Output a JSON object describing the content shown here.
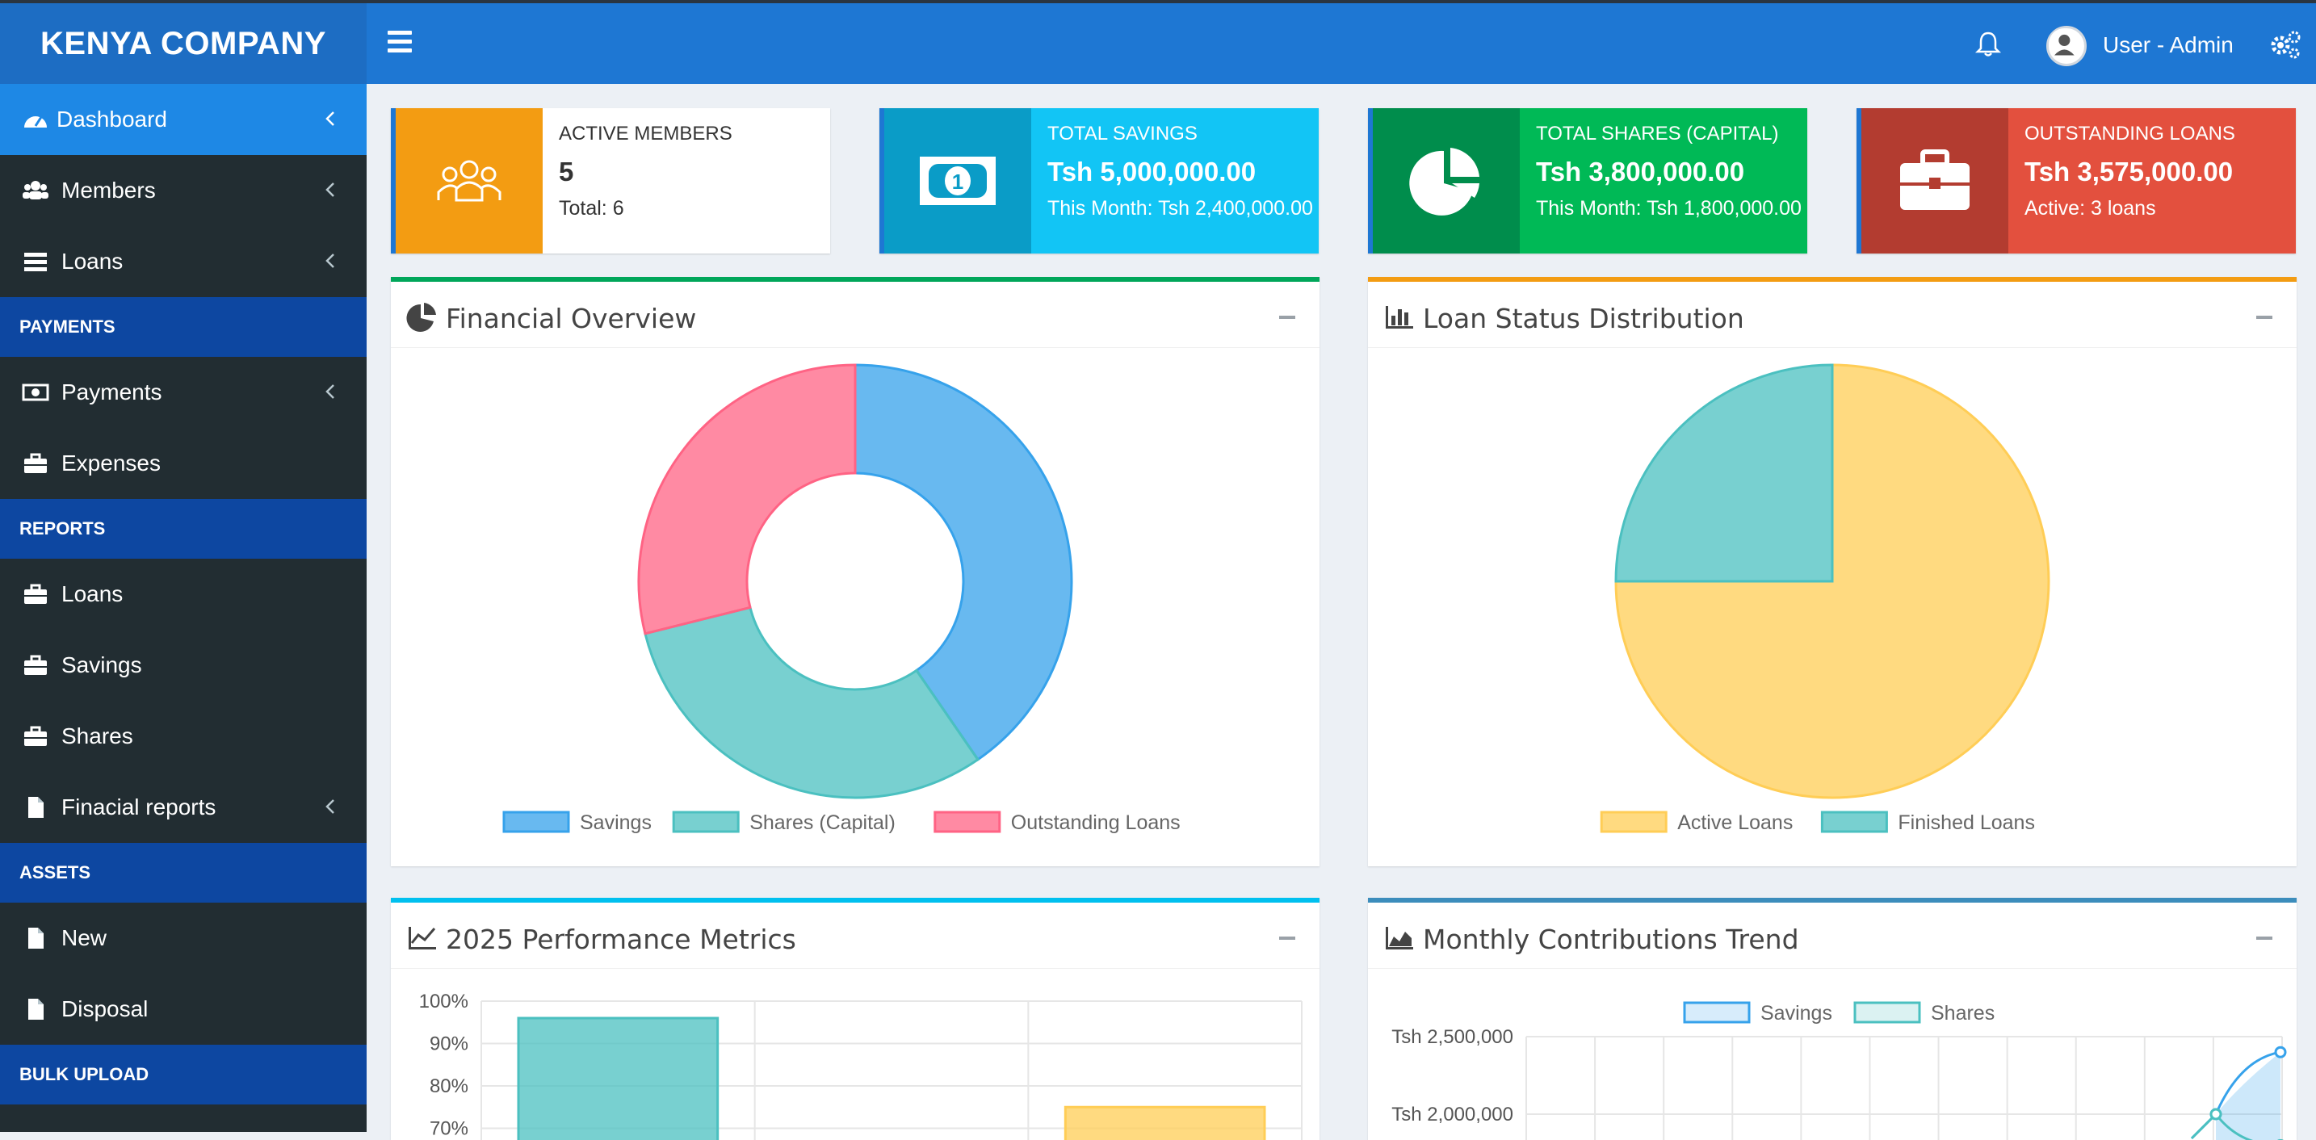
{
  "header": {
    "brand": "KENYA COMPANY",
    "user_label": "User - Admin"
  },
  "sidebar": {
    "items": [
      {
        "label": "Dashboard"
      },
      {
        "label": "Members"
      },
      {
        "label": "Loans"
      },
      {
        "label": "Payments"
      },
      {
        "label": "Expenses"
      },
      {
        "label": "Loans"
      },
      {
        "label": "Savings"
      },
      {
        "label": "Shares"
      },
      {
        "label": "Finacial reports"
      },
      {
        "label": "New"
      },
      {
        "label": "Disposal"
      }
    ],
    "headers": [
      "PAYMENTS",
      "REPORTS",
      "ASSETS",
      "BULK UPLOAD"
    ]
  },
  "info_boxes": [
    {
      "title": "ACTIVE MEMBERS",
      "value": "5",
      "sub": "Total: 6",
      "icon": "users-icon",
      "color": "#f39c12"
    },
    {
      "title": "TOTAL SAVINGS",
      "value": "Tsh 5,000,000.00",
      "sub": "This Month: Tsh 2,400,000.00",
      "icon": "money-icon",
      "color": "#00c0ef"
    },
    {
      "title": "TOTAL SHARES (CAPITAL)",
      "value": "Tsh 3,800,000.00",
      "sub": "This Month: Tsh 1,800,000.00",
      "icon": "pie-chart-icon",
      "color": "#00a65a"
    },
    {
      "title": "OUTSTANDING LOANS",
      "value": "Tsh 3,575,000.00",
      "sub": "Active: 3 loans",
      "icon": "briefcase-icon",
      "color": "#dd4b39"
    }
  ],
  "panels": {
    "financial_overview": {
      "title": "Financial Overview"
    },
    "loan_status": {
      "title": "Loan Status Distribution"
    },
    "performance": {
      "title": "2025 Performance Metrics"
    },
    "monthly_trend": {
      "title": "Monthly Contributions Trend"
    }
  },
  "chart_data": [
    {
      "type": "pie",
      "variant": "doughnut",
      "title": "Financial Overview",
      "labels": [
        "Savings",
        "Shares (Capital)",
        "Outstanding Loans"
      ],
      "values": [
        5000000,
        3800000,
        3575000
      ],
      "colors": [
        "#36a2eb",
        "#4bc0c0",
        "#ff6384"
      ]
    },
    {
      "type": "pie",
      "title": "Loan Status Distribution",
      "labels": [
        "Active Loans",
        "Finished Loans"
      ],
      "values": [
        3,
        1
      ],
      "colors": [
        "#ffcd56",
        "#4bc0c0"
      ]
    },
    {
      "type": "bar",
      "title": "2025 Performance Metrics",
      "yticks": [
        "100%",
        "90%",
        "80%",
        "70%"
      ],
      "values": [
        96,
        null,
        75
      ],
      "colors": [
        "#4bc0c0",
        "#36a2eb",
        "#ffcd56"
      ],
      "ylim": [
        0,
        100
      ]
    },
    {
      "type": "line",
      "title": "Monthly Contributions Trend",
      "legend": [
        "Savings",
        "Shares"
      ],
      "yticks": [
        "Tsh 2,500,000",
        "Tsh 2,000,000"
      ],
      "series": [
        {
          "name": "Savings",
          "last_values": [
            2000000,
            2400000
          ]
        },
        {
          "name": "Shares",
          "last_values": [
            2000000,
            1800000
          ]
        }
      ]
    }
  ]
}
